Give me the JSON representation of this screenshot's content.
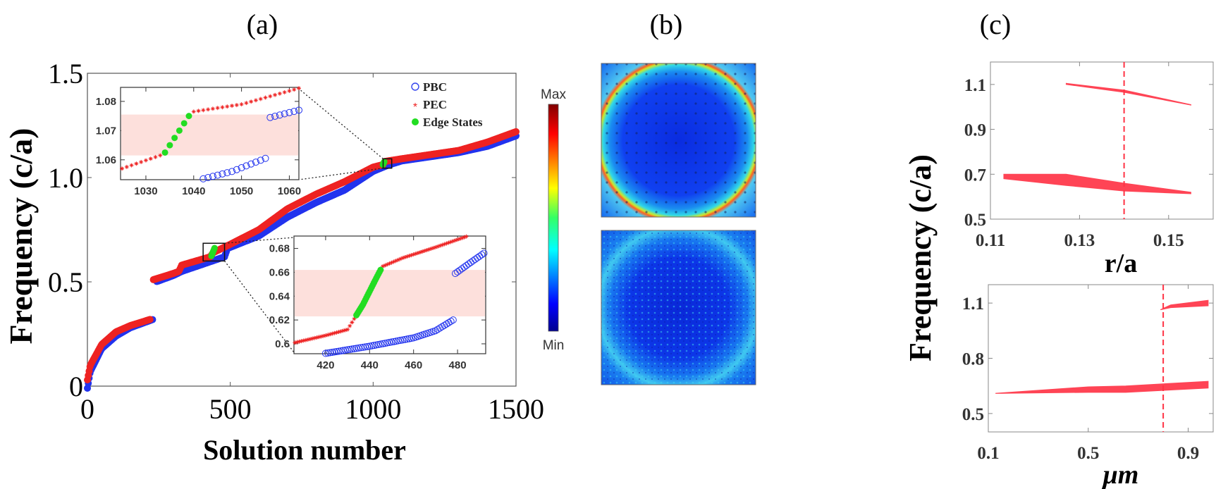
{
  "panels": {
    "a": "(a)",
    "b": "(b)",
    "c": "(c)"
  },
  "chart_data": [
    {
      "id": "a-main",
      "type": "scatter",
      "xlabel": "Solution number",
      "ylabel": "Frequency (c/a)",
      "xlim": [
        0,
        1500
      ],
      "ylim": [
        0,
        1.5
      ],
      "xticks": [
        "0",
        "500",
        "1000",
        "1500"
      ],
      "xtick_values": [
        0,
        500,
        1000,
        1500
      ],
      "yticks": [
        "0",
        "0.5",
        "1.0",
        "1.5"
      ],
      "ytick_values": [
        0,
        0.5,
        1.0,
        1.5
      ],
      "legend": {
        "placement": "top-right",
        "entries": [
          "PBC",
          "PEC",
          "Edge States"
        ]
      },
      "colors": {
        "PBC": "#2233ee",
        "PEC": "#ee2222",
        "Edge States": "#22dd22"
      },
      "series": [
        {
          "name": "PEC",
          "x": [
            0,
            10,
            50,
            100,
            150,
            220,
            230,
            300,
            320,
            330,
            430,
            440,
            500,
            600,
            700,
            800,
            900,
            1000,
            1035,
            1040,
            1100,
            1200,
            1300,
            1400,
            1500
          ],
          "y": [
            0.03,
            0.1,
            0.2,
            0.26,
            0.29,
            0.32,
            0.51,
            0.54,
            0.55,
            0.58,
            0.62,
            0.64,
            0.68,
            0.75,
            0.85,
            0.92,
            0.98,
            1.05,
            1.062,
            1.077,
            1.09,
            1.11,
            1.13,
            1.17,
            1.22
          ]
        },
        {
          "name": "PBC",
          "x": [
            0,
            10,
            50,
            100,
            150,
            230,
            240,
            300,
            330,
            480,
            490,
            600,
            700,
            800,
            900,
            1000,
            1042,
            1055,
            1100,
            1200,
            1300,
            1400,
            1500
          ],
          "y": [
            -0.01,
            0.07,
            0.18,
            0.24,
            0.28,
            0.32,
            0.5,
            0.53,
            0.55,
            0.62,
            0.66,
            0.72,
            0.81,
            0.88,
            0.94,
            1.03,
            1.054,
            1.061,
            1.08,
            1.1,
            1.12,
            1.15,
            1.2
          ]
        },
        {
          "name": "Edge States",
          "x": [
            434,
            445,
            1034,
            1039
          ],
          "y": [
            0.624,
            0.662,
            1.062,
            1.076
          ]
        }
      ],
      "zoom_boxes": [
        {
          "x": [
            1035,
            1065
          ],
          "y": [
            1.045,
            1.09
          ]
        },
        {
          "x": [
            405,
            480
          ],
          "y": [
            0.6,
            0.685
          ]
        }
      ]
    },
    {
      "id": "a-inset-upper",
      "type": "scatter",
      "xlim": [
        1024.7,
        1062
      ],
      "ylim": [
        1.0532,
        1.0848
      ],
      "xticks": [
        "1030",
        "1040",
        "1050",
        "1060"
      ],
      "xtick_values": [
        1030,
        1040,
        1050,
        1060
      ],
      "yticks": [
        "1.06",
        "1.07",
        "1.08"
      ],
      "ytick_values": [
        1.06,
        1.07,
        1.08
      ],
      "band_gap": [
        1.0615,
        1.0755
      ],
      "series": [
        {
          "name": "PEC",
          "x": [
            1025,
            1033,
            1040,
            1050,
            1062
          ],
          "y": [
            1.057,
            1.0615,
            1.0765,
            1.079,
            1.0845
          ]
        },
        {
          "name": "Edge States",
          "x": [
            1034,
            1035,
            1036,
            1037,
            1038,
            1039
          ],
          "y": [
            1.0625,
            1.065,
            1.0675,
            1.07,
            1.0725,
            1.075
          ]
        },
        {
          "name": "PBC",
          "x": [
            1042,
            1048,
            1055,
            1056,
            1062
          ],
          "y": [
            1.0535,
            1.056,
            1.0605,
            1.0745,
            1.077
          ]
        }
      ]
    },
    {
      "id": "a-inset-lower",
      "type": "scatter",
      "xlim": [
        405.6,
        492.8
      ],
      "ylim": [
        0.5917,
        0.6904
      ],
      "xticks": [
        "420",
        "440",
        "460",
        "480"
      ],
      "xtick_values": [
        420,
        440,
        460,
        480
      ],
      "yticks": [
        "0.6",
        "0.62",
        "0.64",
        "0.66",
        "0.68"
      ],
      "ytick_values": [
        0.6,
        0.62,
        0.64,
        0.66,
        0.68
      ],
      "band_gap": [
        0.623,
        0.662
      ],
      "series": [
        {
          "name": "PEC",
          "x": [
            406,
            420,
            430,
            433,
            446,
            455,
            470,
            484
          ],
          "y": [
            0.601,
            0.607,
            0.612,
            0.621,
            0.665,
            0.672,
            0.681,
            0.69
          ]
        },
        {
          "name": "Edge States",
          "x": [
            434,
            437,
            440,
            443,
            445
          ],
          "y": [
            0.624,
            0.633,
            0.644,
            0.655,
            0.662
          ]
        },
        {
          "name": "PBC",
          "x": [
            420,
            440,
            460,
            470,
            478,
            479,
            485,
            492
          ],
          "y": [
            0.592,
            0.598,
            0.605,
            0.611,
            0.62,
            0.659,
            0.667,
            0.676
          ]
        }
      ]
    },
    {
      "id": "c-top",
      "type": "area",
      "xlabel": "r/a",
      "ylabel": "Frequency (c/a)",
      "xlim": [
        0.11,
        0.16
      ],
      "ylim": [
        0.5,
        1.2
      ],
      "xticks": [
        "0.11",
        "0.13",
        "0.15"
      ],
      "xtick_values": [
        0.11,
        0.13,
        0.15
      ],
      "yticks": [
        "0.5",
        "0.7",
        "0.9",
        "1.1"
      ],
      "ytick_values": [
        0.5,
        0.7,
        0.9,
        1.1
      ],
      "marker_line": 0.14,
      "band_color": "#ff4455",
      "bands": [
        {
          "x": [
            0.127,
            0.14,
            0.155
          ],
          "upper": [
            1.105,
            1.075,
            1.01
          ],
          "lower": [
            1.1,
            1.065,
            1.008
          ]
        },
        {
          "x": [
            0.113,
            0.127,
            0.14,
            0.155
          ],
          "upper": [
            0.7,
            0.7,
            0.66,
            0.62
          ],
          "lower": [
            0.68,
            0.65,
            0.625,
            0.613
          ]
        }
      ]
    },
    {
      "id": "c-bottom",
      "type": "area",
      "xlabel": "μm",
      "xlim": [
        0.1,
        1.0
      ],
      "ylim": [
        0.4,
        1.2
      ],
      "xticks": [
        "0.1",
        "0.5",
        "0.9"
      ],
      "xtick_values": [
        0.1,
        0.5,
        0.9
      ],
      "yticks": [
        "0.5",
        "0.8",
        "1.1"
      ],
      "ytick_values": [
        0.5,
        0.8,
        1.1
      ],
      "marker_line": 0.8,
      "band_color": "#ff4455",
      "bands": [
        {
          "x": [
            0.79,
            0.83,
            0.98
          ],
          "upper": [
            1.065,
            1.09,
            1.115
          ],
          "lower": [
            1.064,
            1.075,
            1.085
          ]
        },
        {
          "x": [
            0.13,
            0.5,
            0.65,
            0.98
          ],
          "upper": [
            0.61,
            0.645,
            0.65,
            0.675
          ],
          "lower": [
            0.609,
            0.615,
            0.615,
            0.638
          ]
        }
      ]
    }
  ],
  "colorbar": {
    "max_label": "Max",
    "min_label": "Min",
    "colormap": "jet"
  }
}
